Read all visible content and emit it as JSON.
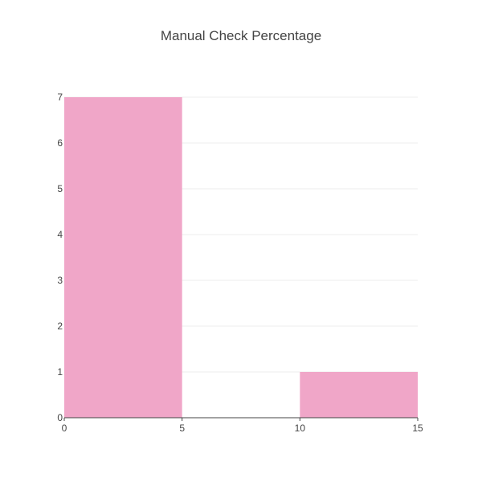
{
  "chart_data": {
    "type": "bar",
    "title": "Manual Check Percentage",
    "xlabel": "",
    "ylabel": "",
    "bins": [
      {
        "x_start": 0,
        "x_end": 5,
        "count": 7
      },
      {
        "x_start": 5,
        "x_end": 10,
        "count": 0
      },
      {
        "x_start": 10,
        "x_end": 15,
        "count": 1
      }
    ],
    "x_ticks": [
      "0",
      "5",
      "10",
      "15"
    ],
    "y_ticks": [
      "0",
      "1",
      "2",
      "3",
      "4",
      "5",
      "6",
      "7"
    ],
    "xlim": [
      0,
      15
    ],
    "ylim": [
      0,
      7
    ],
    "grid": true,
    "colors": {
      "bar": "#f0a6c8",
      "grid": "#eeeeee",
      "axis": "#444444",
      "text": "#444444"
    }
  }
}
